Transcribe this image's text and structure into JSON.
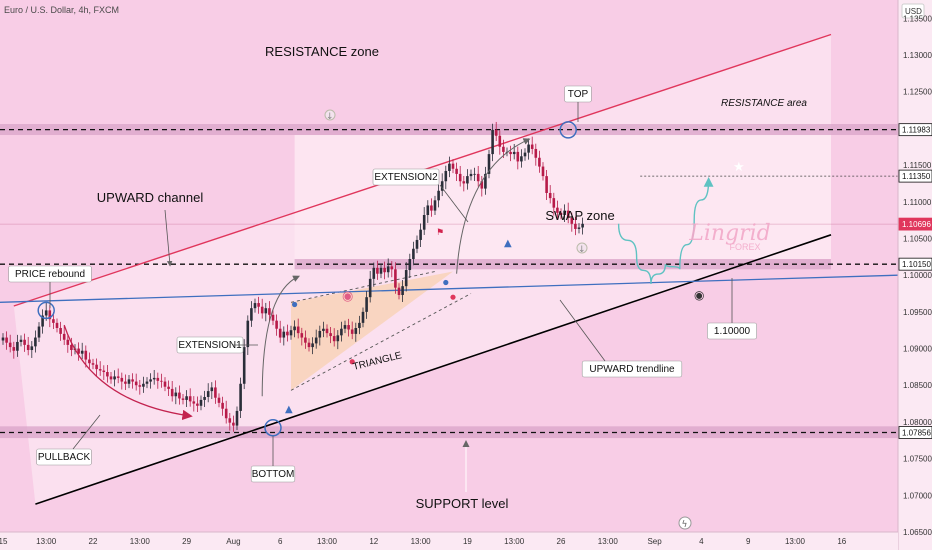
{
  "header": {
    "title": "Euro / U.S. Dollar, 4h, FXCM",
    "currency": "USD"
  },
  "chart_data": {
    "type": "candlestick",
    "title": "Euro / U.S. Dollar, 4h, FXCM",
    "ylim": [
      1.065,
      1.1375
    ],
    "price_ticks": [
      "1.13500",
      "1.13000",
      "1.12500",
      "1.11500",
      "1.11000",
      "1.10500",
      "1.10000",
      "1.09500",
      "1.09000",
      "1.08500",
      "1.08000",
      "1.07500",
      "1.07000",
      "1.06500"
    ],
    "price_tick_values": [
      1.135,
      1.13,
      1.125,
      1.115,
      1.11,
      1.105,
      1.1,
      1.095,
      1.09,
      1.085,
      1.08,
      1.075,
      1.07,
      1.065
    ],
    "level_tags": [
      {
        "label": "1.11983",
        "value": 1.11983,
        "style": "dark"
      },
      {
        "label": "1.11350",
        "value": 1.1135,
        "style": "dark"
      },
      {
        "label": "1.10696",
        "value": 1.10696,
        "style": "red"
      },
      {
        "label": "1.10150",
        "value": 1.1015,
        "style": "dark"
      },
      {
        "label": "1.07856",
        "value": 1.07856,
        "style": "dark"
      }
    ],
    "time_ticks": [
      {
        "label": "15",
        "i": 0
      },
      {
        "label": "13:00",
        "i": 12
      },
      {
        "label": "22",
        "i": 25
      },
      {
        "label": "13:00",
        "i": 38
      },
      {
        "label": "29",
        "i": 51
      },
      {
        "label": "Aug",
        "i": 64
      },
      {
        "label": "6",
        "i": 77
      },
      {
        "label": "13:00",
        "i": 90
      },
      {
        "label": "12",
        "i": 103
      },
      {
        "label": "13:00",
        "i": 116
      },
      {
        "label": "19",
        "i": 129
      },
      {
        "label": "13:00",
        "i": 142
      },
      {
        "label": "26",
        "i": 155
      },
      {
        "label": "13:00",
        "i": 168
      },
      {
        "label": "Sep",
        "i": 181
      },
      {
        "label": "4",
        "i": 194
      },
      {
        "label": "9",
        "i": 207
      },
      {
        "label": "13:00",
        "i": 220
      },
      {
        "label": "16",
        "i": 233
      }
    ],
    "closes": [
      1.0915,
      1.0908,
      1.0902,
      1.0897,
      1.0909,
      1.0912,
      1.0905,
      1.0898,
      1.0903,
      1.0915,
      1.093,
      1.0945,
      1.0952,
      1.094,
      1.0935,
      1.0928,
      1.092,
      1.0912,
      1.0905,
      1.0898,
      1.09,
      1.0893,
      1.0897,
      1.0885,
      1.088,
      1.0878,
      1.0872,
      1.087,
      1.0868,
      1.0862,
      1.0858,
      1.0862,
      1.086,
      1.0855,
      1.0852,
      1.0858,
      1.0855,
      1.085,
      1.0848,
      1.0852,
      1.0855,
      1.0858,
      1.086,
      1.0856,
      1.0855,
      1.0848,
      1.0845,
      1.0835,
      1.084,
      1.0832,
      1.083,
      1.0835,
      1.0828,
      1.0825,
      1.0822,
      1.083,
      1.0834,
      1.0842,
      1.0847,
      1.0833,
      1.0826,
      1.0818,
      1.0805,
      1.0799,
      1.0795,
      1.0815,
      1.0852,
      1.0902,
      1.0938,
      1.0955,
      1.0962,
      1.0957,
      1.0948,
      1.0955,
      1.0946,
      1.0938,
      1.0927,
      1.0915,
      1.0923,
      1.0918,
      1.0925,
      1.093,
      1.0921,
      1.0915,
      1.0908,
      1.0902,
      1.0907,
      1.0915,
      1.0924,
      1.0927,
      1.0921,
      1.0917,
      1.091,
      1.0918,
      1.0927,
      1.0932,
      1.0926,
      1.092,
      1.0928,
      1.0935,
      1.095,
      1.097,
      1.0995,
      1.101,
      1.1002,
      1.101,
      1.1004,
      1.1012,
      1.1008,
      1.0983,
      1.0973,
      1.0985,
      1.1007,
      1.1022,
      1.1036,
      1.1048,
      1.1062,
      1.1082,
      1.1095,
      1.1088,
      1.1102,
      1.1115,
      1.1128,
      1.1142,
      1.1152,
      1.1145,
      1.1138,
      1.1128,
      1.1125,
      1.1135,
      1.1138,
      1.1138,
      1.1128,
      1.1118,
      1.1138,
      1.1165,
      1.1198,
      1.119,
      1.1175,
      1.1168,
      1.1168,
      1.1165,
      1.1168,
      1.1155,
      1.1162,
      1.1167,
      1.1178,
      1.1172,
      1.116,
      1.1148,
      1.1135,
      1.1112,
      1.1105,
      1.1092,
      1.1085,
      1.1082,
      1.1088,
      1.1078,
      1.107,
      1.1063,
      1.1065,
      1.107
    ],
    "projection": [
      [
        171,
        1.107
      ],
      [
        176,
        1.1025
      ],
      [
        180,
        1.0988
      ],
      [
        184,
        1.1015
      ],
      [
        188,
        1.1008
      ],
      [
        192,
        1.1075
      ],
      [
        196,
        1.113
      ]
    ],
    "zones": [
      {
        "name": "resistance",
        "from": 1.1191,
        "to": 1.1206
      },
      {
        "name": "swap",
        "from": 1.1008,
        "to": 1.1022
      },
      {
        "name": "support",
        "from": 1.0778,
        "to": 1.0794
      }
    ],
    "dashed_levels": [
      1.11983,
      1.1015,
      1.07856
    ],
    "annotations": {
      "resistance_zone": "RESISTANCE zone",
      "resistance_area": "RESISTANCE area",
      "top": "TOP",
      "extension2": "EXTENSION2",
      "upward_channel": "UPWARD channel",
      "swap_zone": "SWAP zone",
      "price_rebound": "PRICE rebound",
      "extension1": "EXTENSION1",
      "triangle": "TRIANGLE",
      "upward_trendline": "UPWARD trendline",
      "pullback": "PULLBACK",
      "bottom": "BOTTOM",
      "support_level": "SUPPORT level",
      "level_1_1": "1.10000"
    },
    "watermark": {
      "name": "Lingrid",
      "sub": "FOREX"
    },
    "colors": {
      "up": "#2a2e39",
      "down": "#b71b49",
      "channel_upper": "#e0365c",
      "channel_lower": "#000000",
      "trendline": "#3f6fbf",
      "projection": "#5fc2c2",
      "zone": "#d9a3c8"
    }
  }
}
